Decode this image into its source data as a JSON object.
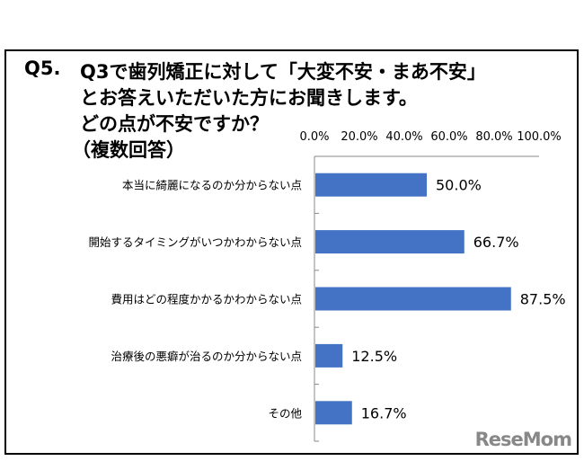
{
  "title": {
    "q": "Q5.",
    "line1": "Q3で歯列矯正に対して「大変不安・まあ不安」",
    "line2": "とお答えいただいた方にお聞きします。",
    "line3": "どの点が不安ですか？",
    "line4": "（複数回答）"
  },
  "logo": "ReseMom",
  "chart_data": {
    "type": "bar",
    "orientation": "horizontal",
    "categories": [
      "本当に綺麗になるのか分からない点",
      "開始するタイミングがいつかわからない点",
      "費用はどの程度かかるかわからない点",
      "治療後の悪癖が治るのか分からない点",
      "その他"
    ],
    "values": [
      50.0,
      66.7,
      87.5,
      12.5,
      16.7
    ],
    "data_labels": [
      "50.0%",
      "66.7%",
      "87.5%",
      "12.5%",
      "16.7%"
    ],
    "xlim": [
      0,
      100
    ],
    "x_ticks": [
      "0.0%",
      "20.0%",
      "40.0%",
      "60.0%",
      "80.0%",
      "100.0%"
    ],
    "x_axis_position": "top",
    "grid": false,
    "bar_color": "#4472c4"
  }
}
